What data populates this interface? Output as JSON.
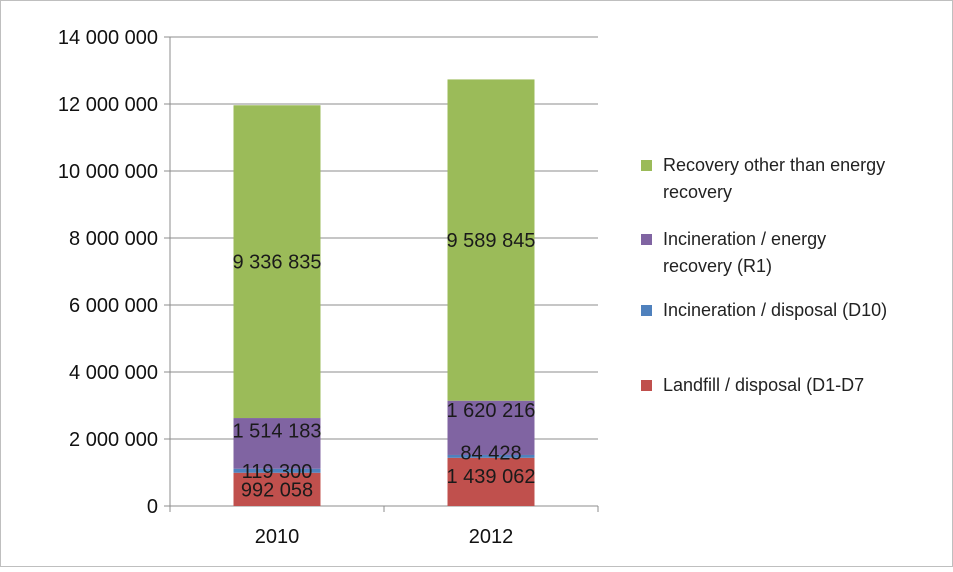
{
  "chart_data": {
    "type": "bar",
    "stacked": true,
    "categories": [
      "2010",
      "2012"
    ],
    "series": [
      {
        "name": "Landfill / disposal (D1-D7",
        "color": "#c0504d",
        "values": [
          992058,
          1439062
        ],
        "labels": [
          "992 058",
          "1 439 062"
        ]
      },
      {
        "name": "Incineration / disposal (D10)",
        "color": "#4f81bd",
        "values": [
          119300,
          84428
        ],
        "labels": [
          "119 300",
          "84 428"
        ]
      },
      {
        "name": "Incineration / energy recovery (R1)",
        "color": "#8064a2",
        "values": [
          1514183,
          1620216
        ],
        "labels": [
          "1 514 183",
          "1 620 216"
        ]
      },
      {
        "name": "Recovery other than energy recovery",
        "color": "#9bbb59",
        "values": [
          9336835,
          9589845
        ],
        "labels": [
          "9 336 835",
          "9 589 845"
        ]
      }
    ],
    "ylim": [
      0,
      14000000
    ],
    "y_ticks": [
      0,
      2000000,
      4000000,
      6000000,
      8000000,
      10000000,
      12000000,
      14000000
    ],
    "y_tick_labels": [
      "0",
      "2 000 000",
      "4 000 000",
      "6 000 000",
      "8 000 000",
      "10 000 000",
      "12 000 000",
      "14 000 000"
    ],
    "legend_order": [
      3,
      2,
      1,
      0
    ],
    "legend_position": "right",
    "grid": true
  }
}
